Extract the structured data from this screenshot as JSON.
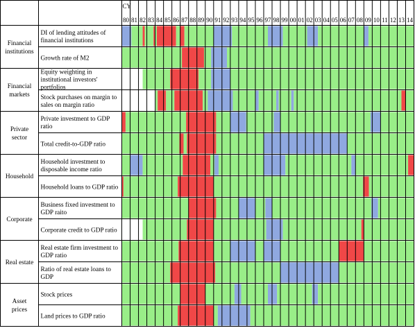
{
  "chart_data": {
    "type": "heatmap",
    "title": "",
    "header_label": "CY",
    "years": [
      "80",
      "81",
      "82",
      "83",
      "84",
      "85",
      "86",
      "87",
      "88",
      "89",
      "90",
      "91",
      "92",
      "93",
      "94",
      "95",
      "96",
      "97",
      "98",
      "99",
      "00",
      "01",
      "02",
      "03",
      "04",
      "05",
      "06",
      "07",
      "08",
      "09",
      "10",
      "11",
      "12",
      "13",
      "14"
    ],
    "state_colors": {
      "red": "#f04747",
      "green": "#99ee88",
      "blue": "#8fa8e0",
      "none": "#ffffff"
    },
    "legend": "",
    "rows": [
      {
        "group": "Financial institutions",
        "label": "DI of lending attitudes of financial institutions",
        "segments": [
          {
            "from": 1980.0,
            "to": 1981.15,
            "state": "blue"
          },
          {
            "from": 1981.15,
            "to": 1982.5,
            "state": "green"
          },
          {
            "from": 1982.5,
            "to": 1982.75,
            "state": "red"
          },
          {
            "from": 1982.75,
            "to": 1983.8,
            "state": "green"
          },
          {
            "from": 1983.8,
            "to": 1983.95,
            "state": "red"
          },
          {
            "from": 1983.95,
            "to": 1984.2,
            "state": "green"
          },
          {
            "from": 1984.2,
            "to": 1986.5,
            "state": "red"
          },
          {
            "from": 1986.5,
            "to": 1986.95,
            "state": "green"
          },
          {
            "from": 1986.95,
            "to": 1987.5,
            "state": "red"
          },
          {
            "from": 1987.5,
            "to": 1991.0,
            "state": "green"
          },
          {
            "from": 1991.0,
            "to": 1993.2,
            "state": "blue"
          },
          {
            "from": 1993.2,
            "to": 1997.5,
            "state": "green"
          },
          {
            "from": 1997.5,
            "to": 1999.3,
            "state": "blue"
          },
          {
            "from": 1999.3,
            "to": 2002.2,
            "state": "green"
          },
          {
            "from": 2002.2,
            "to": 2003.5,
            "state": "blue"
          },
          {
            "from": 2003.5,
            "to": 2009.0,
            "state": "green"
          },
          {
            "from": 2009.0,
            "to": 2009.55,
            "state": "blue"
          },
          {
            "from": 2009.55,
            "to": 2015.0,
            "state": "green"
          }
        ]
      },
      {
        "group": "Financial institutions",
        "label": "Growth rate of M2",
        "segments": [
          {
            "from": 1980.0,
            "to": 1987.2,
            "state": "green"
          },
          {
            "from": 1987.2,
            "to": 1989.85,
            "state": "red"
          },
          {
            "from": 1989.85,
            "to": 1990.7,
            "state": "green"
          },
          {
            "from": 1990.7,
            "to": 1992.6,
            "state": "blue"
          },
          {
            "from": 1992.6,
            "to": 2015.0,
            "state": "green"
          }
        ]
      },
      {
        "group": "Financial markets",
        "label": "Equity weighting in institutional investors' portfolios",
        "segments": [
          {
            "from": 1980.0,
            "to": 1982.5,
            "state": "none"
          },
          {
            "from": 1982.5,
            "to": 1985.8,
            "state": "green"
          },
          {
            "from": 1985.8,
            "to": 1989.2,
            "state": "red"
          },
          {
            "from": 1989.2,
            "to": 1990.7,
            "state": "green"
          },
          {
            "from": 1990.7,
            "to": 1993.0,
            "state": "blue"
          },
          {
            "from": 1993.0,
            "to": 2015.0,
            "state": "green"
          }
        ]
      },
      {
        "group": "Financial markets",
        "label": "Stock purchases on margin to sales on margin ratio",
        "segments": [
          {
            "from": 1980.0,
            "to": 1984.0,
            "state": "none"
          },
          {
            "from": 1984.0,
            "to": 1984.3,
            "state": "green"
          },
          {
            "from": 1984.3,
            "to": 1985.3,
            "state": "red"
          },
          {
            "from": 1985.3,
            "to": 1986.3,
            "state": "green"
          },
          {
            "from": 1986.3,
            "to": 1989.7,
            "state": "red"
          },
          {
            "from": 1989.7,
            "to": 1990.3,
            "state": "green"
          },
          {
            "from": 1990.3,
            "to": 1993.3,
            "state": "blue"
          },
          {
            "from": 1993.3,
            "to": 1996.0,
            "state": "green"
          },
          {
            "from": 1996.0,
            "to": 1996.4,
            "state": "blue"
          },
          {
            "from": 1996.4,
            "to": 1998.5,
            "state": "green"
          },
          {
            "from": 1998.5,
            "to": 1998.8,
            "state": "blue"
          },
          {
            "from": 1998.8,
            "to": 2000.3,
            "state": "green"
          },
          {
            "from": 2000.3,
            "to": 2000.6,
            "state": "blue"
          },
          {
            "from": 2000.6,
            "to": 2013.5,
            "state": "green"
          },
          {
            "from": 2013.5,
            "to": 2014.0,
            "state": "red"
          },
          {
            "from": 2014.0,
            "to": 2015.0,
            "state": "green"
          }
        ]
      },
      {
        "group": "Private sector",
        "label": "Private investment to GDP ratio",
        "segments": [
          {
            "from": 1980.0,
            "to": 1980.45,
            "state": "red"
          },
          {
            "from": 1980.45,
            "to": 1987.7,
            "state": "green"
          },
          {
            "from": 1987.7,
            "to": 1991.3,
            "state": "red"
          },
          {
            "from": 1991.3,
            "to": 1993.0,
            "state": "green"
          },
          {
            "from": 1993.0,
            "to": 1994.9,
            "state": "blue"
          },
          {
            "from": 1994.9,
            "to": 1998.2,
            "state": "green"
          },
          {
            "from": 1998.2,
            "to": 1999.0,
            "state": "blue"
          },
          {
            "from": 1999.0,
            "to": 2009.8,
            "state": "green"
          },
          {
            "from": 2009.8,
            "to": 2011.0,
            "state": "blue"
          },
          {
            "from": 2011.0,
            "to": 2015.0,
            "state": "green"
          }
        ]
      },
      {
        "group": "Private sector",
        "label": "Total credit-to-GDP ratio",
        "segments": [
          {
            "from": 1980.0,
            "to": 1986.9,
            "state": "green"
          },
          {
            "from": 1986.9,
            "to": 1987.4,
            "state": "red"
          },
          {
            "from": 1987.4,
            "to": 1987.8,
            "state": "green"
          },
          {
            "from": 1987.8,
            "to": 1991.3,
            "state": "red"
          },
          {
            "from": 1991.3,
            "to": 1997.0,
            "state": "green"
          },
          {
            "from": 1997.0,
            "to": 2007.0,
            "state": "blue"
          },
          {
            "from": 2007.0,
            "to": 2015.0,
            "state": "green"
          }
        ]
      },
      {
        "group": "Household",
        "label": "Household investment to disposable income ratio",
        "segments": [
          {
            "from": 1980.0,
            "to": 1981.0,
            "state": "green"
          },
          {
            "from": 1981.0,
            "to": 1982.5,
            "state": "blue"
          },
          {
            "from": 1982.5,
            "to": 1987.3,
            "state": "green"
          },
          {
            "from": 1987.3,
            "to": 1990.6,
            "state": "red"
          },
          {
            "from": 1990.6,
            "to": 1991.1,
            "state": "green"
          },
          {
            "from": 1991.1,
            "to": 1991.6,
            "state": "blue"
          },
          {
            "from": 1991.6,
            "to": 1997.0,
            "state": "green"
          },
          {
            "from": 1997.0,
            "to": 1999.6,
            "state": "blue"
          },
          {
            "from": 1999.6,
            "to": 2007.5,
            "state": "green"
          },
          {
            "from": 2007.5,
            "to": 2008.0,
            "state": "blue"
          },
          {
            "from": 2008.0,
            "to": 2014.3,
            "state": "green"
          },
          {
            "from": 2014.3,
            "to": 2015.0,
            "state": "red"
          }
        ]
      },
      {
        "group": "Household",
        "label": "Household loans to GDP ratio",
        "segments": [
          {
            "from": 1980.0,
            "to": 1980.2,
            "state": "red"
          },
          {
            "from": 1980.2,
            "to": 1986.7,
            "state": "green"
          },
          {
            "from": 1986.7,
            "to": 1991.0,
            "state": "red"
          },
          {
            "from": 1991.0,
            "to": 2008.9,
            "state": "green"
          },
          {
            "from": 2008.9,
            "to": 2009.6,
            "state": "red"
          },
          {
            "from": 2009.6,
            "to": 2015.0,
            "state": "green"
          }
        ]
      },
      {
        "group": "Corporate",
        "label": "Business fixed investment to GDP raito",
        "segments": [
          {
            "from": 1980.0,
            "to": 1988.0,
            "state": "green"
          },
          {
            "from": 1988.0,
            "to": 1991.3,
            "state": "red"
          },
          {
            "from": 1991.3,
            "to": 1994.0,
            "state": "green"
          },
          {
            "from": 1994.0,
            "to": 1996.0,
            "state": "blue"
          },
          {
            "from": 1996.0,
            "to": 1997.2,
            "state": "green"
          },
          {
            "from": 1997.2,
            "to": 1998.0,
            "state": "blue"
          },
          {
            "from": 1998.0,
            "to": 2009.9,
            "state": "green"
          },
          {
            "from": 2009.9,
            "to": 2010.7,
            "state": "blue"
          },
          {
            "from": 2010.7,
            "to": 2015.0,
            "state": "green"
          }
        ]
      },
      {
        "group": "Corporate",
        "label": "Corporate credit to GDP ratio",
        "segments": [
          {
            "from": 1980.0,
            "to": 1982.5,
            "state": "none"
          },
          {
            "from": 1982.5,
            "to": 1987.8,
            "state": "green"
          },
          {
            "from": 1987.8,
            "to": 1991.0,
            "state": "red"
          },
          {
            "from": 1991.0,
            "to": 1997.3,
            "state": "green"
          },
          {
            "from": 1997.3,
            "to": 1999.3,
            "state": "blue"
          },
          {
            "from": 1999.3,
            "to": 2008.7,
            "state": "green"
          },
          {
            "from": 2008.7,
            "to": 2009.0,
            "state": "red"
          },
          {
            "from": 2009.0,
            "to": 2015.0,
            "state": "green"
          }
        ]
      },
      {
        "group": "Real estate",
        "label": "Real estate firm investment to GDP ratio",
        "segments": [
          {
            "from": 1980.0,
            "to": 1986.8,
            "state": "green"
          },
          {
            "from": 1986.8,
            "to": 1991.0,
            "state": "red"
          },
          {
            "from": 1991.0,
            "to": 1993.0,
            "state": "green"
          },
          {
            "from": 1993.0,
            "to": 1996.0,
            "state": "blue"
          },
          {
            "from": 1996.0,
            "to": 1997.0,
            "state": "green"
          },
          {
            "from": 1997.0,
            "to": 1999.0,
            "state": "blue"
          },
          {
            "from": 1999.0,
            "to": 2006.0,
            "state": "green"
          },
          {
            "from": 2006.0,
            "to": 2009.0,
            "state": "red"
          },
          {
            "from": 2009.0,
            "to": 2015.0,
            "state": "green"
          }
        ]
      },
      {
        "group": "Real estate",
        "label": "Ratio of real estate loans to GDP",
        "segments": [
          {
            "from": 1980.0,
            "to": 1985.8,
            "state": "green"
          },
          {
            "from": 1985.8,
            "to": 1991.2,
            "state": "red"
          },
          {
            "from": 1991.2,
            "to": 1999.0,
            "state": "green"
          },
          {
            "from": 1999.0,
            "to": 2006.0,
            "state": "blue"
          },
          {
            "from": 2006.0,
            "to": 2015.0,
            "state": "green"
          }
        ]
      },
      {
        "group": "Asset prices",
        "label": "Stock prices",
        "segments": [
          {
            "from": 1980.0,
            "to": 1987.0,
            "state": "green"
          },
          {
            "from": 1987.0,
            "to": 1990.0,
            "state": "red"
          },
          {
            "from": 1990.0,
            "to": 1993.5,
            "state": "green"
          },
          {
            "from": 1993.5,
            "to": 1994.3,
            "state": "blue"
          },
          {
            "from": 1994.3,
            "to": 1997.5,
            "state": "green"
          },
          {
            "from": 1997.5,
            "to": 1998.6,
            "state": "blue"
          },
          {
            "from": 1998.6,
            "to": 2002.8,
            "state": "green"
          },
          {
            "from": 2002.8,
            "to": 2003.5,
            "state": "blue"
          },
          {
            "from": 2003.5,
            "to": 2015.0,
            "state": "green"
          }
        ]
      },
      {
        "group": "Asset prices",
        "label": "Land prices to GDP ratio",
        "segments": [
          {
            "from": 1980.0,
            "to": 1986.7,
            "state": "green"
          },
          {
            "from": 1986.7,
            "to": 1991.0,
            "state": "red"
          },
          {
            "from": 1991.0,
            "to": 1991.5,
            "state": "green"
          },
          {
            "from": 1991.5,
            "to": 1995.4,
            "state": "blue"
          },
          {
            "from": 1995.4,
            "to": 2015.0,
            "state": "green"
          }
        ]
      }
    ]
  }
}
